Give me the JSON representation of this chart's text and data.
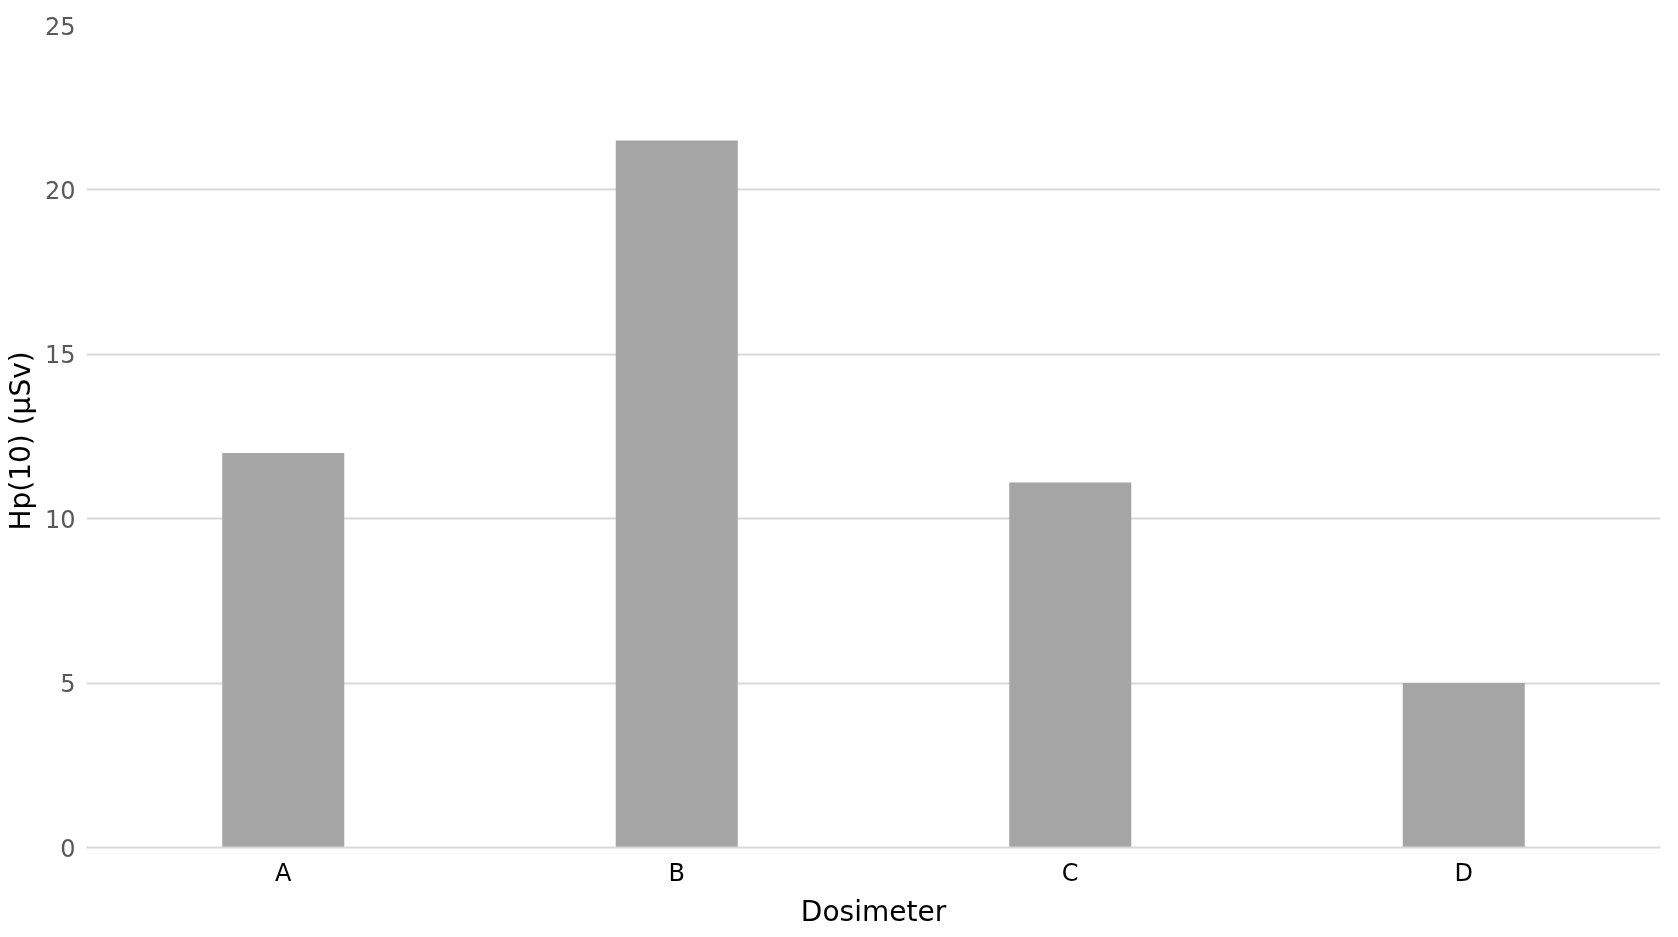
{
  "chart_data": {
    "type": "bar",
    "xlabel": "Dosimeter",
    "ylabel": "Hp(10)  (µSv)",
    "categories": [
      "A",
      "B",
      "C",
      "D"
    ],
    "values": [
      12,
      21.5,
      11.1,
      5
    ],
    "color": "#a5a5a5",
    "ylim": [
      0,
      25
    ],
    "yticks": [
      0,
      5,
      10,
      15,
      20,
      25
    ],
    "grid": "y"
  }
}
